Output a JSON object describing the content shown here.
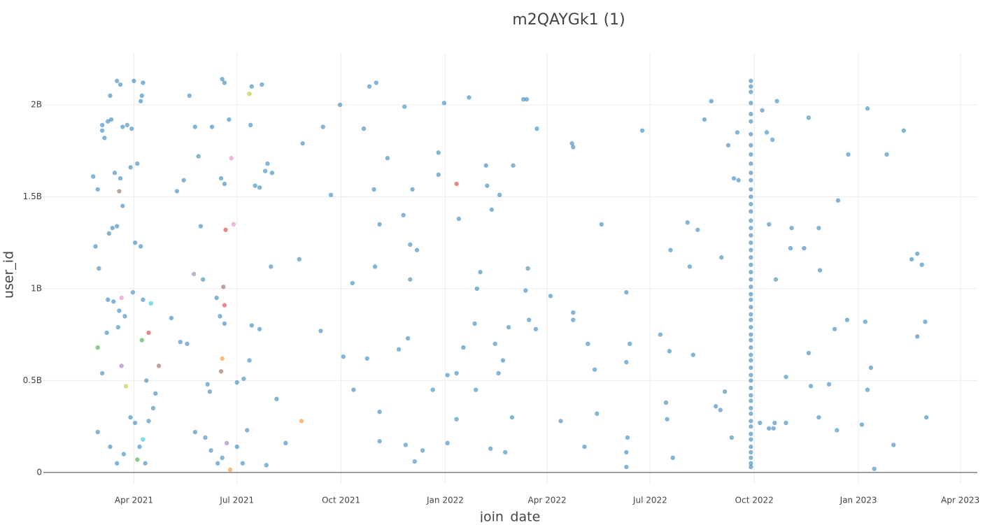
{
  "chart_data": {
    "type": "scatter",
    "title": "m2QAYGk1 (1)",
    "x_label": "join_date",
    "y_label": "user_id",
    "xlim": [
      "2021-01-11",
      "2023-04-16"
    ],
    "ylim": [
      -65000000,
      2285000000
    ],
    "xticks": [
      {
        "value": "2021-04-01",
        "label": "Apr 2021"
      },
      {
        "value": "2021-07-01",
        "label": "Jul 2021"
      },
      {
        "value": "2021-10-01",
        "label": "Oct 2021"
      },
      {
        "value": "2022-01-01",
        "label": "Jan 2022"
      },
      {
        "value": "2022-04-01",
        "label": "Apr 2022"
      },
      {
        "value": "2022-07-01",
        "label": "Jul 2022"
      },
      {
        "value": "2022-10-01",
        "label": "Oct 2022"
      },
      {
        "value": "2023-01-01",
        "label": "Jan 2023"
      },
      {
        "value": "2023-04-01",
        "label": "Apr 2023"
      }
    ],
    "yticks": [
      0,
      {
        "value": 500000000,
        "label": "0.5B"
      },
      {
        "value": 1000000000,
        "label": "1B"
      },
      {
        "value": 1500000000,
        "label": "1.5B"
      },
      {
        "value": 2000000000,
        "label": "2B"
      }
    ],
    "grid": true,
    "series": [
      {
        "color": "#1f77b4",
        "x": [
          "2021-02-24",
          "2021-02-28",
          "2021-02-26",
          "2021-03-01",
          "2021-02-28",
          "2021-03-04",
          "2021-03-04",
          "2021-03-04",
          "2021-03-06",
          "2021-03-09",
          "2021-03-11",
          "2021-03-12",
          "2021-03-17",
          "2021-03-20",
          "2021-03-22",
          "2021-03-26",
          "2021-03-30",
          "2021-04-01",
          "2021-04-09",
          "2021-04-08",
          "2021-04-07",
          "2021-03-10",
          "2021-03-13",
          "2021-03-17",
          "2021-03-22",
          "2021-03-20",
          "2021-03-15",
          "2021-03-29",
          "2021-04-04",
          "2021-04-02",
          "2021-04-07",
          "2021-03-09",
          "2021-03-14",
          "2021-03-19",
          "2021-03-24",
          "2021-03-31",
          "2021-03-08",
          "2021-03-18",
          "2021-03-11",
          "2021-03-17",
          "2021-03-23",
          "2021-03-29",
          "2021-04-02",
          "2021-04-06",
          "2021-04-11",
          "2021-04-14",
          "2021-04-12",
          "2021-04-18",
          "2021-04-20",
          "2021-04-09",
          "2021-05-04",
          "2021-05-12",
          "2021-05-18",
          "2021-05-09",
          "2021-05-15",
          "2021-05-20",
          "2021-05-28",
          "2021-05-25",
          "2021-06-09",
          "2021-06-18",
          "2021-06-20",
          "2021-06-17",
          "2021-06-20",
          "2021-06-24",
          "2021-05-30",
          "2021-06-01",
          "2021-06-16",
          "2021-06-13",
          "2021-06-20",
          "2021-06-05",
          "2021-06-07",
          "2021-05-25",
          "2021-06-03",
          "2021-06-08",
          "2021-06-14",
          "2021-06-18",
          "2021-07-13",
          "2021-07-06",
          "2021-07-27",
          "2021-07-12",
          "2021-07-07",
          "2021-07-01",
          "2021-07-10",
          "2021-07-01",
          "2021-07-17",
          "2021-07-26",
          "2021-07-14",
          "2021-07-21",
          "2021-07-23",
          "2021-07-28",
          "2021-08-01",
          "2021-07-31",
          "2021-07-14",
          "2021-07-21",
          "2021-08-05",
          "2021-08-13",
          "2021-08-25",
          "2021-08-28",
          "2021-09-15",
          "2021-09-13",
          "2021-09-22",
          "2021-09-30",
          "2021-10-03",
          "2021-10-11",
          "2021-10-12",
          "2021-10-21",
          "2021-10-24",
          "2021-10-26",
          "2021-11-01",
          "2021-10-30",
          "2021-10-31",
          "2021-11-04",
          "2021-11-04",
          "2021-11-04",
          "2021-11-11",
          "2021-11-21",
          "2021-11-25",
          "2021-11-26",
          "2021-11-29",
          "2021-12-01",
          "2021-12-01",
          "2021-12-03",
          "2021-12-07",
          "2021-12-12",
          "2021-12-05",
          "2021-11-27",
          "2021-12-21",
          "2021-12-26",
          "2021-12-26",
          "2021-12-31",
          "2022-01-03",
          "2022-01-03",
          "2022-01-11",
          "2022-01-11",
          "2022-01-13",
          "2022-01-17",
          "2022-01-22",
          "2022-01-27",
          "2022-01-28",
          "2022-02-01",
          "2022-01-29",
          "2022-02-06",
          "2022-02-07",
          "2022-02-10",
          "2022-02-11",
          "2022-02-14",
          "2022-02-17",
          "2022-02-18",
          "2022-02-21",
          "2022-02-23",
          "2022-02-26",
          "2022-03-02",
          "2022-03-01",
          "2022-03-11",
          "2022-03-14",
          "2022-03-13",
          "2022-03-15",
          "2022-03-16",
          "2022-03-22",
          "2022-03-23",
          "2022-04-04",
          "2022-04-13",
          "2022-04-23",
          "2022-04-24",
          "2022-04-24",
          "2022-04-24",
          "2022-05-04",
          "2022-05-07",
          "2022-05-13",
          "2022-05-15",
          "2022-05-19",
          "2022-06-10",
          "2022-06-10",
          "2022-06-11",
          "2022-06-10",
          "2022-06-10",
          "2022-06-13",
          "2022-06-24",
          "2022-07-10",
          "2022-07-15",
          "2022-07-16",
          "2022-07-18",
          "2022-07-19",
          "2022-07-21",
          "2022-08-03",
          "2022-08-05",
          "2022-08-08",
          "2022-08-12",
          "2022-08-18",
          "2022-08-24",
          "2022-08-28",
          "2022-09-01",
          "2022-09-02",
          "2022-09-05",
          "2022-09-08",
          "2022-09-11",
          "2022-09-13",
          "2022-09-17",
          "2022-09-16",
          "2022-10-06",
          "2022-10-08",
          "2022-10-12",
          "2022-10-14",
          "2022-10-14",
          "2022-10-17",
          "2022-10-18",
          "2022-10-19",
          "2022-10-20",
          "2022-10-21",
          "2022-10-29",
          "2022-10-29",
          "2022-11-02",
          "2022-11-03",
          "2022-11-14",
          "2022-11-18",
          "2022-11-18",
          "2022-11-20",
          "2022-11-27",
          "2022-11-27",
          "2022-11-28",
          "2022-12-06",
          "2022-12-11",
          "2022-12-13",
          "2022-12-14",
          "2022-12-22",
          "2022-12-23",
          "2023-01-04",
          "2023-01-07",
          "2023-01-09",
          "2023-01-09",
          "2023-01-12",
          "2023-01-15",
          "2023-01-26",
          "2023-02-01",
          "2023-02-10",
          "2023-02-17",
          "2023-02-22",
          "2023-02-22",
          "2023-02-26",
          "2023-03-01",
          "2023-03-02"
        ],
        "values": [
          1610000000,
          1540000000,
          1230000000,
          1110000000,
          220000000,
          540000000,
          1890000000,
          1860000000,
          1820000000,
          1910000000,
          2050000000,
          1920000000,
          2130000000,
          2110000000,
          1880000000,
          1890000000,
          1870000000,
          2130000000,
          2120000000,
          2050000000,
          2020000000,
          1300000000,
          1330000000,
          1340000000,
          1450000000,
          1600000000,
          1630000000,
          1660000000,
          1680000000,
          1250000000,
          1230000000,
          940000000,
          930000000,
          880000000,
          850000000,
          980000000,
          760000000,
          790000000,
          140000000,
          50000000,
          100000000,
          300000000,
          270000000,
          140000000,
          50000000,
          280000000,
          500000000,
          350000000,
          430000000,
          940000000,
          840000000,
          710000000,
          700000000,
          1530000000,
          1590000000,
          2050000000,
          1720000000,
          1880000000,
          1880000000,
          2140000000,
          2120000000,
          1600000000,
          1570000000,
          1920000000,
          1340000000,
          1050000000,
          850000000,
          950000000,
          810000000,
          480000000,
          440000000,
          220000000,
          190000000,
          120000000,
          50000000,
          80000000,
          1890000000,
          50000000,
          40000000,
          610000000,
          510000000,
          490000000,
          230000000,
          140000000,
          1560000000,
          1640000000,
          2100000000,
          1550000000,
          2110000000,
          1680000000,
          1630000000,
          1120000000,
          800000000,
          780000000,
          400000000,
          160000000,
          1160000000,
          1790000000,
          1880000000,
          770000000,
          1510000000,
          2000000000,
          630000000,
          1030000000,
          450000000,
          1870000000,
          620000000,
          2100000000,
          2120000000,
          1540000000,
          1120000000,
          1350000000,
          330000000,
          170000000,
          1710000000,
          670000000,
          1400000000,
          1990000000,
          730000000,
          1240000000,
          1050000000,
          1540000000,
          1210000000,
          120000000,
          60000000,
          150000000,
          450000000,
          1740000000,
          1620000000,
          2010000000,
          530000000,
          160000000,
          540000000,
          290000000,
          1380000000,
          680000000,
          2040000000,
          810000000,
          450000000,
          1090000000,
          1000000000,
          1670000000,
          1560000000,
          130000000,
          1430000000,
          700000000,
          540000000,
          1510000000,
          610000000,
          110000000,
          790000000,
          1670000000,
          300000000,
          2030000000,
          2030000000,
          990000000,
          1110000000,
          830000000,
          780000000,
          1870000000,
          960000000,
          280000000,
          1790000000,
          1770000000,
          870000000,
          830000000,
          140000000,
          700000000,
          560000000,
          320000000,
          1350000000,
          980000000,
          600000000,
          190000000,
          110000000,
          30000000,
          700000000,
          1860000000,
          750000000,
          380000000,
          290000000,
          660000000,
          1210000000,
          80000000,
          1360000000,
          1120000000,
          640000000,
          1320000000,
          1920000000,
          2020000000,
          360000000,
          340000000,
          1170000000,
          440000000,
          1780000000,
          190000000,
          1600000000,
          1590000000,
          1850000000,
          270000000,
          1970000000,
          1850000000,
          240000000,
          1350000000,
          1810000000,
          240000000,
          270000000,
          1050000000,
          2020000000,
          270000000,
          520000000,
          1220000000,
          1330000000,
          1220000000,
          650000000,
          1930000000,
          470000000,
          300000000,
          1330000000,
          1100000000,
          480000000,
          780000000,
          230000000,
          1480000000,
          830000000,
          1730000000,
          260000000,
          820000000,
          1980000000,
          450000000,
          570000000,
          20000000,
          1730000000,
          150000000,
          1860000000,
          1160000000,
          1190000000,
          740000000,
          1130000000,
          820000000,
          300000000
        ]
      },
      {
        "color": "#1f77b4",
        "x": [
          "2022-09-28",
          "2022-09-28",
          "2022-09-28",
          "2022-09-28",
          "2022-09-28",
          "2022-09-28",
          "2022-09-28",
          "2022-09-28",
          "2022-09-28",
          "2022-09-28",
          "2022-09-28",
          "2022-09-28",
          "2022-09-28",
          "2022-09-28",
          "2022-09-28",
          "2022-09-28",
          "2022-09-28",
          "2022-09-28",
          "2022-09-28",
          "2022-09-28",
          "2022-09-28",
          "2022-09-28",
          "2022-09-28",
          "2022-09-28",
          "2022-09-28",
          "2022-09-28",
          "2022-09-28",
          "2022-09-28",
          "2022-09-28",
          "2022-09-28",
          "2022-09-28",
          "2022-09-28",
          "2022-09-28",
          "2022-09-28",
          "2022-09-28",
          "2022-09-28",
          "2022-09-28",
          "2022-09-28",
          "2022-09-28",
          "2022-09-28",
          "2022-09-28",
          "2022-09-28",
          "2022-09-28",
          "2022-09-28",
          "2022-09-28",
          "2022-09-28",
          "2022-09-28",
          "2022-09-28",
          "2022-09-28",
          "2022-09-28",
          "2022-09-28",
          "2022-09-28",
          "2022-09-28",
          "2022-09-28"
        ],
        "values": [
          30000000,
          50000000,
          80000000,
          110000000,
          140000000,
          180000000,
          210000000,
          250000000,
          280000000,
          320000000,
          350000000,
          390000000,
          420000000,
          460000000,
          500000000,
          530000000,
          570000000,
          610000000,
          640000000,
          680000000,
          720000000,
          750000000,
          790000000,
          830000000,
          860000000,
          900000000,
          940000000,
          970000000,
          1010000000,
          1050000000,
          1090000000,
          1130000000,
          1170000000,
          1210000000,
          1250000000,
          1290000000,
          1330000000,
          1370000000,
          1420000000,
          1460000000,
          1500000000,
          1540000000,
          1590000000,
          1630000000,
          1680000000,
          1730000000,
          1780000000,
          1840000000,
          1910000000,
          1950000000,
          2010000000,
          2070000000,
          2100000000,
          2130000000
        ]
      },
      {
        "color": "#d62728",
        "x": [
          "2021-06-21",
          "2021-06-20",
          "2021-04-14",
          "2022-01-11"
        ],
        "values": [
          1320000000,
          910000000,
          760000000,
          1570000000
        ]
      },
      {
        "color": "#e377c2",
        "x": [
          "2021-06-28",
          "2021-06-26",
          "2021-03-21"
        ],
        "values": [
          1350000000,
          1710000000,
          950000000
        ]
      },
      {
        "color": "#bcbd22",
        "x": [
          "2021-07-12",
          "2021-03-25"
        ],
        "values": [
          2060000000,
          470000000
        ]
      },
      {
        "color": "#9467bd",
        "x": [
          "2021-05-24",
          "2021-03-21",
          "2021-06-22"
        ],
        "values": [
          1080000000,
          580000000,
          160000000
        ]
      },
      {
        "color": "#8c564b",
        "x": [
          "2021-06-19",
          "2021-04-23",
          "2021-06-17",
          "2021-03-19"
        ],
        "values": [
          1010000000,
          580000000,
          550000000,
          1530000000
        ]
      },
      {
        "color": "#17becf",
        "x": [
          "2021-04-16",
          "2021-04-09"
        ],
        "values": [
          920000000,
          180000000
        ]
      },
      {
        "color": "#2ca02c",
        "x": [
          "2021-02-28",
          "2021-04-08",
          "2021-04-04"
        ],
        "values": [
          680000000,
          720000000,
          70000000
        ]
      },
      {
        "color": "#ff7f0e",
        "x": [
          "2021-06-18",
          "2021-06-25",
          "2021-08-27"
        ],
        "values": [
          620000000,
          15000000,
          280000000
        ]
      }
    ]
  }
}
